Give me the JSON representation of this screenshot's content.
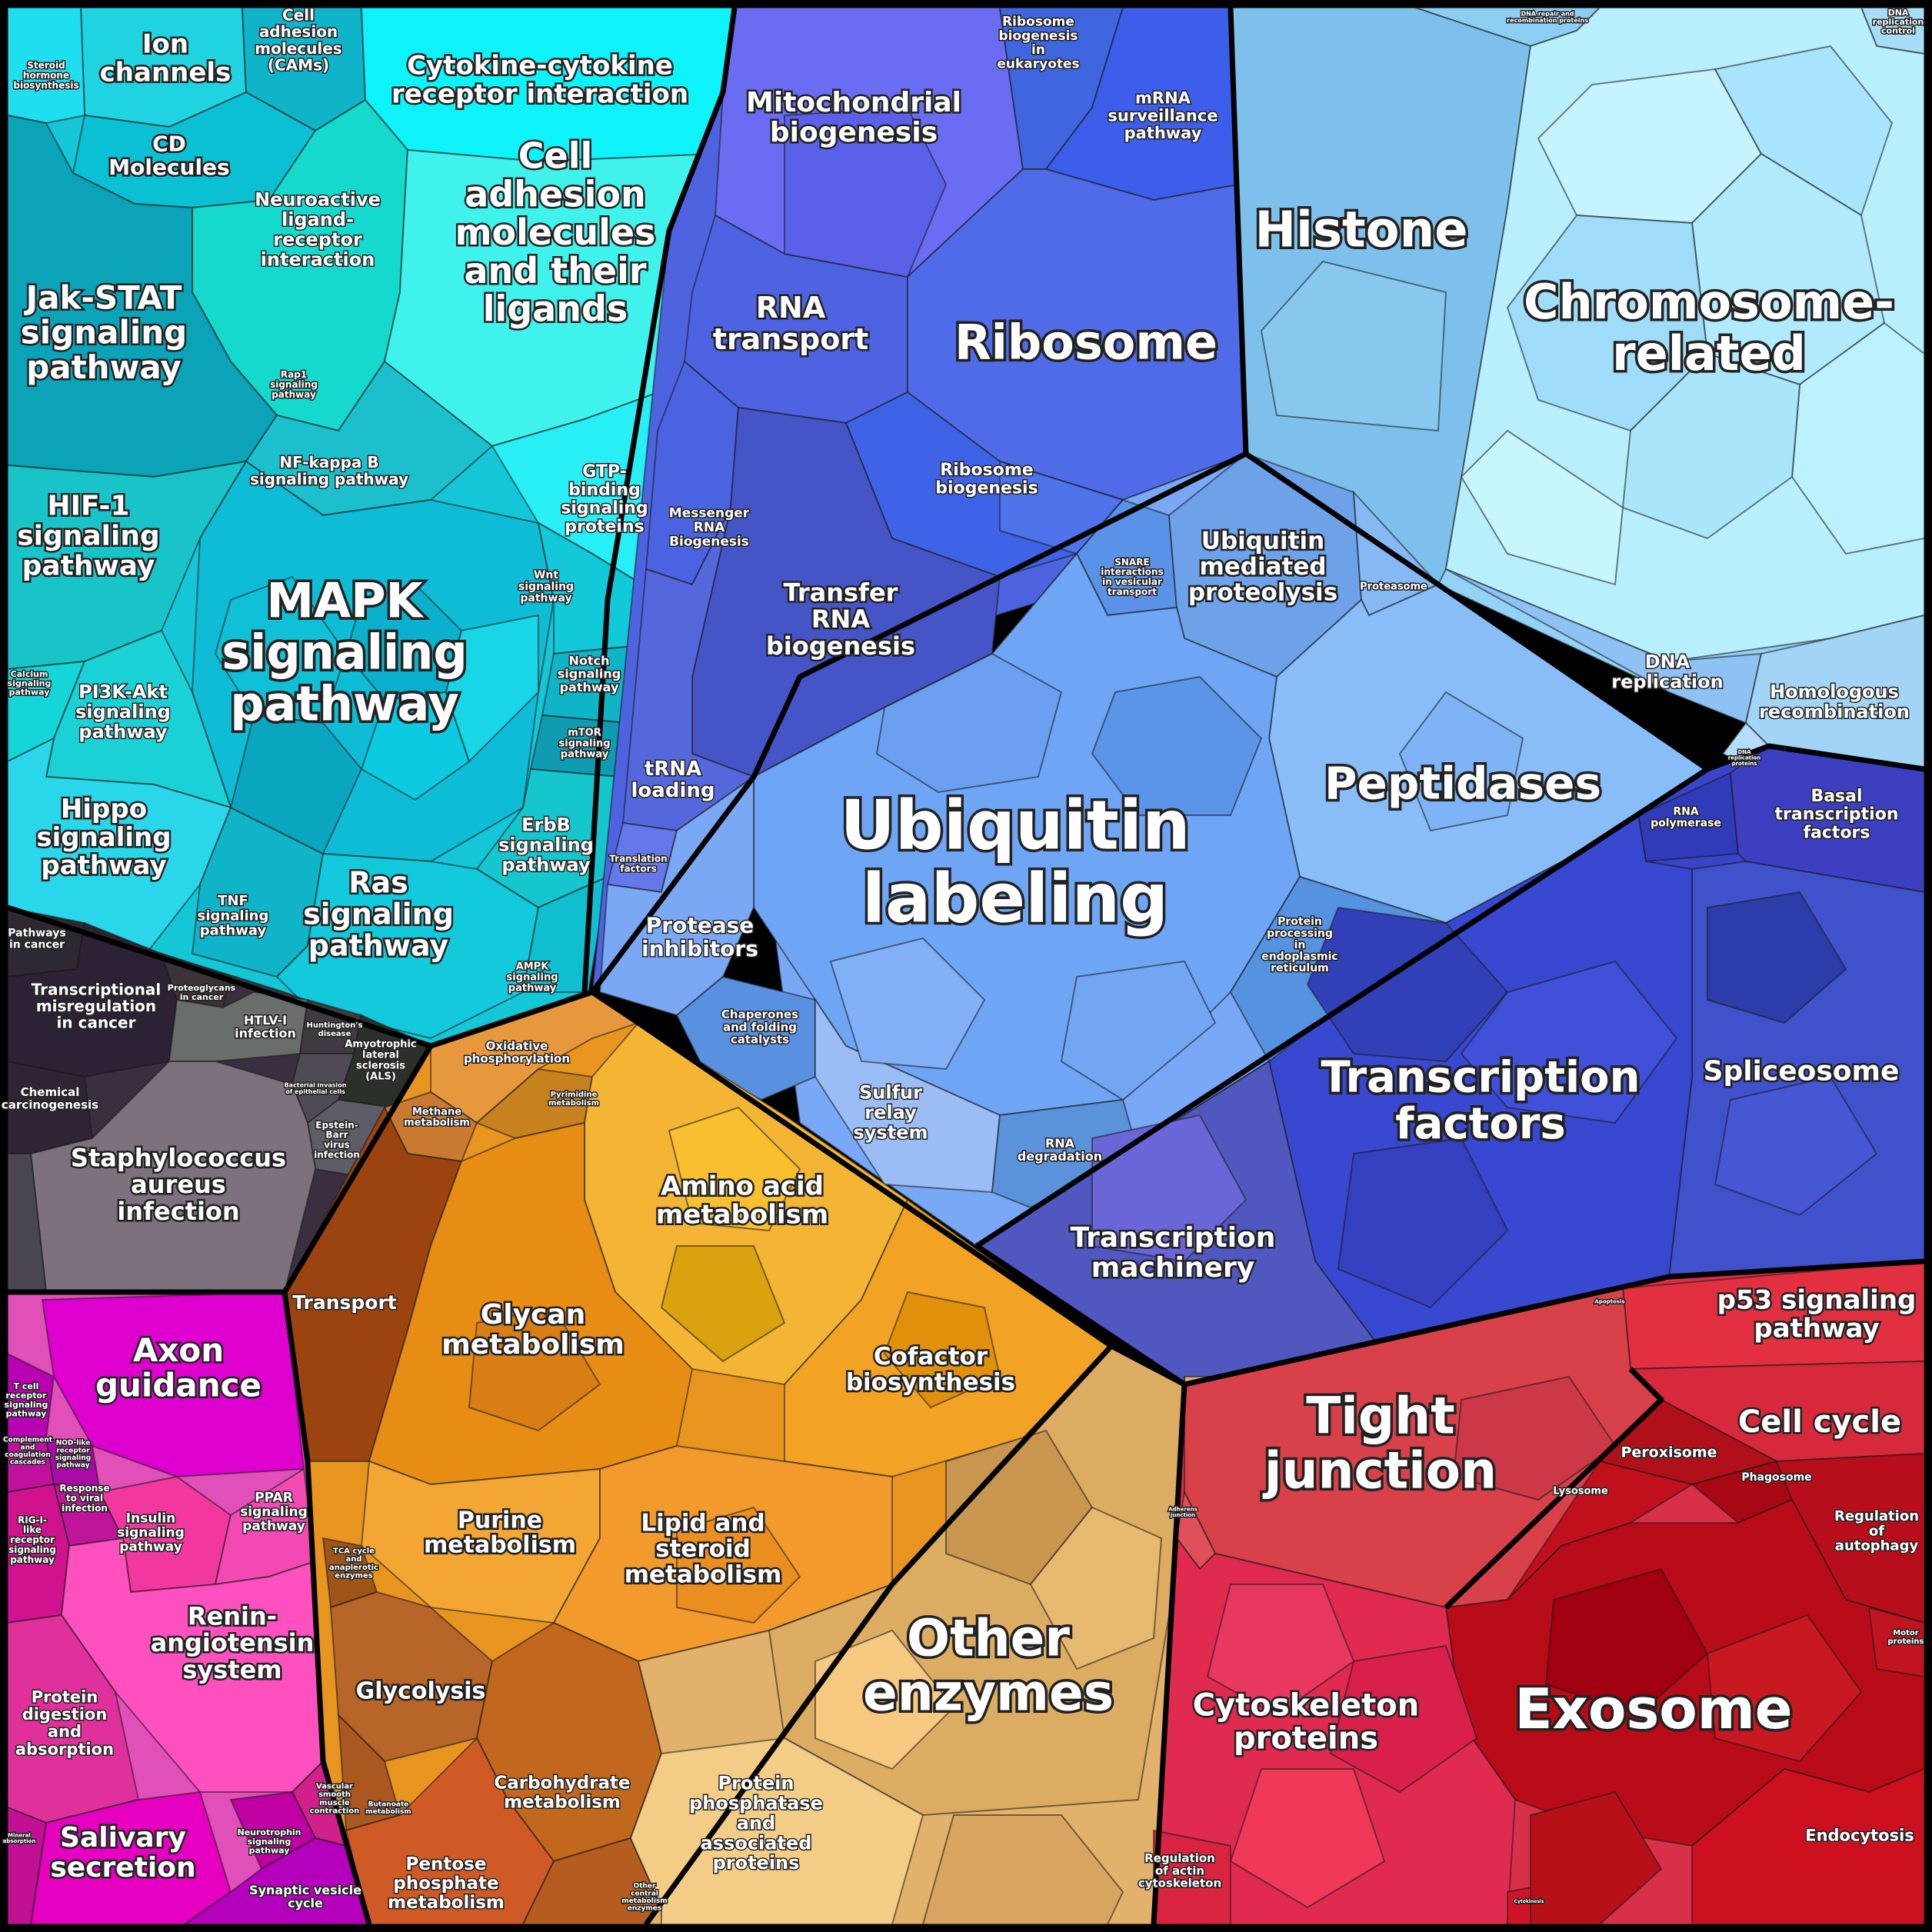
{
  "labels": {
    "cyan": {
      "ion_channels": "Ion\nchannels",
      "cell_adhesion_cams": "Cell\nadhesion\nmolecules\n(CAMs)",
      "steroid_hormone": "Steroid\nhormone\nbiosynthesis",
      "cytokine": "Cytokine-cytokine\nreceptor interaction",
      "cd_molecules": "CD\nMolecules",
      "neuroactive": "Neuroactive\nligand-\nreceptor\ninteraction",
      "cell_adhesion_ligands": "Cell\nadhesion\nmolecules\nand their\nligands",
      "jak_stat": "Jak-STAT\nsignaling\npathway",
      "rap1": "Rap1\nsignaling\npathway",
      "nf_kappa_b": "NF-kappa B\nsignaling pathway",
      "gtp_binding": "GTP-\nbinding\nsignaling\nproteins",
      "hif1": "HIF-1\nsignaling\npathway",
      "mapk": "MAPK\nsignaling\npathway",
      "wnt": "Wnt\nsignaling\npathway",
      "notch": "Notch\nsignaling\npathway",
      "mtor": "mTOR\nsignaling\npathway",
      "calcium": "Calcium\nsignaling\npathway",
      "pi3k_akt": "PI3K-Akt\nsignaling\npathway",
      "hippo": "Hippo\nsignaling\npathway",
      "erbb": "ErbB\nsignaling\npathway",
      "tnf": "TNF\nsignaling\npathway",
      "ras": "Ras\nsignaling\npathway",
      "ampk": "AMPK\nsignaling\npathway"
    },
    "gray": {
      "pathways_in_cancer": "Pathways\nin cancer",
      "transcriptional_misreg": "Transcriptional\nmisregulation\nin cancer",
      "proteoglycans": "Proteoglycans\nin cancer",
      "htlv1": "HTLV-I\ninfection",
      "huntingtons": "Huntington's\ndisease",
      "als": "Amyotrophic\nlateral\nsclerosis\n(ALS)",
      "chemical_carcinogenesis": "Chemical\ncarcinogenesis",
      "bacterial_invasion": "Bacterial invasion\nof epithelial cells",
      "epstein_barr": "Epstein-\nBarr\nvirus\ninfection",
      "staph": "Staphylococcus\naureus\ninfection"
    },
    "blue": {
      "mitochondrial": "Mitochondrial\nbiogenesis",
      "ribosome_biogenesis_euk": "Ribosome\nbiogenesis\nin\neukaryotes",
      "mrna_surveillance": "mRNA\nsurveillance\npathway",
      "rna_transport": "RNA\ntransport",
      "ribosome": "Ribosome",
      "messenger_rna": "Messenger\nRNA\nBiogenesis",
      "ribosome_biogenesis": "Ribosome\nbiogenesis",
      "transfer_rna": "Transfer\nRNA\nbiogenesis",
      "trna_loading": "tRNA\nloading",
      "translation_factors": "Translation\nfactors"
    },
    "light_blue": {
      "dna_repair": "DNA repair and\nrecombination proteins",
      "dna_replication_control": "DNA\nreplication\ncontrol",
      "histone": "Histone",
      "chromosome": "Chromosome-\nrelated",
      "dna_replication": "DNA\nreplication",
      "homologous": "Homologous\nrecombination",
      "dna_replication_proteins": "DNA\nreplication\nproteins"
    },
    "mid_blue": {
      "snare": "SNARE\ninteractions\nin vesicular\ntransport",
      "ubiquitin_mediated": "Ubiquitin\nmediated\nproteolysis",
      "proteasome": "Proteasome",
      "peptidases": "Peptidases",
      "ubiquitin_labeling": "Ubiquitin\nlabeling",
      "protease_inhibitors": "Protease\ninhibitors",
      "chaperones": "Chaperones\nand folding\ncatalysts",
      "sulfur_relay": "Sulfur\nrelay\nsystem",
      "rna_degradation": "RNA\ndegradation",
      "protein_processing_er": "Protein\nprocessing\nin\nendoplasmic\nreticulum"
    },
    "indigo": {
      "rna_polymerase": "RNA\npolymerase",
      "basal_tf": "Basal\ntranscription\nfactors",
      "spliceosome": "Spliceosome",
      "transcription_factors": "Transcription\nfactors",
      "transcription_machinery": "Transcription\nmachinery"
    },
    "magenta": {
      "axon_guidance": "Axon\nguidance",
      "t_cell": "T cell\nreceptor\nsignaling\npathway",
      "complement": "Complement\nand\ncoagulation\ncascades",
      "nod_like": "NOD-like\nreceptor\nsignaling\npathway",
      "response_viral": "Response\nto viral\ninfection",
      "rig_i": "RIG-I-\nlike\nreceptor\nsignaling\npathway",
      "insulin": "Insulin\nsignaling\npathway",
      "ppar": "PPAR\nsignaling\npathway",
      "renin": "Renin-\nangiotensin\nsystem",
      "protein_digestion": "Protein\ndigestion\nand\nabsorption",
      "salivary": "Salivary\nsecretion",
      "vascular": "Vascular\nsmooth\nmuscle\ncontraction",
      "neurotrophin": "Neurotrophin\nsignaling\npathway",
      "synaptic": "Synaptic vesicle\ncycle",
      "mineral_absorption": "Mineral\nabsorption"
    },
    "orange": {
      "oxidative": "Oxidative\nphosphorylation",
      "methane": "Methane\nmetabolism",
      "pyrimidine": "Pyrimidine\nmetabolism",
      "amino_acid": "Amino acid\nmetabolism",
      "transport": "Transport",
      "glycan": "Glycan\nmetabolism",
      "cofactor": "Cofactor\nbiosynthesis",
      "purine": "Purine\nmetabolism",
      "lipid": "Lipid and\nsteroid\nmetabolism",
      "tca": "TCA cycle\nand\nanaplerotic\nenzymes",
      "glycolysis": "Glycolysis",
      "carbohydrate": "Carbohydrate\nmetabolism",
      "butanoate": "Butanoate\nmetabolism",
      "pentose": "Pentose\nphosphate\nmetabolism",
      "other_central": "Other\ncentral\nmetabolism\nenzymes"
    },
    "tan": {
      "other_enzymes": "Other\nenzymes",
      "protein_phosphatase": "Protein\nphosphatase\nand\nassociated\nproteins"
    },
    "red": {
      "apoptosis": "Apoptosis",
      "p53": "p53 signaling\npathway",
      "cell_cycle": "Cell cycle",
      "tight_junction": "Tight\njunction",
      "peroxisome": "Peroxisome",
      "phagosome": "Phagosome",
      "lysosome": "Lysosome",
      "regulation_autophagy": "Regulation\nof\nautophagy",
      "exosome": "Exosome",
      "adherens": "Adherens\njunction",
      "cytoskeleton": "Cytoskeleton\nproteins",
      "motor_proteins": "Motor\nproteins",
      "regulation_actin": "Regulation\nof actin\ncytoskeleton",
      "endocytosis": "Endocytosis",
      "cytokinesis": "Cytokinesis"
    }
  },
  "colors": {
    "frame": "#000000",
    "cyan_light": "#0ef2fa",
    "cyan_mid": "#10c5d8",
    "cyan_dark": "#0a9bb0",
    "teal": "#20d0c0",
    "gray_dark": "#2a2030",
    "gray_mid": "#5d5d66",
    "gray_light": "#7a707b",
    "blue_violet": "#6a6cf2",
    "blue": "#4966e6",
    "blue_deep": "#3c5ad0",
    "sky": "#86c8f5",
    "sky_light": "#b6eefc",
    "periwinkle": "#79a8f7",
    "periwinkle_dark": "#5590e6",
    "indigo": "#3a44c8",
    "indigo_dark": "#2c33a8",
    "magenta": "#dd00cf",
    "pink": "#f244b8",
    "orange": "#f2a022",
    "orange_dark": "#c97418",
    "gold": "#f7c53a",
    "brown": "#9b4410",
    "brown_mid": "#b8652a",
    "tan": "#e5b36a",
    "tan_light": "#f3cd86",
    "red": "#d63040",
    "red_dark": "#b0101a",
    "red_mid": "#e0404c"
  }
}
